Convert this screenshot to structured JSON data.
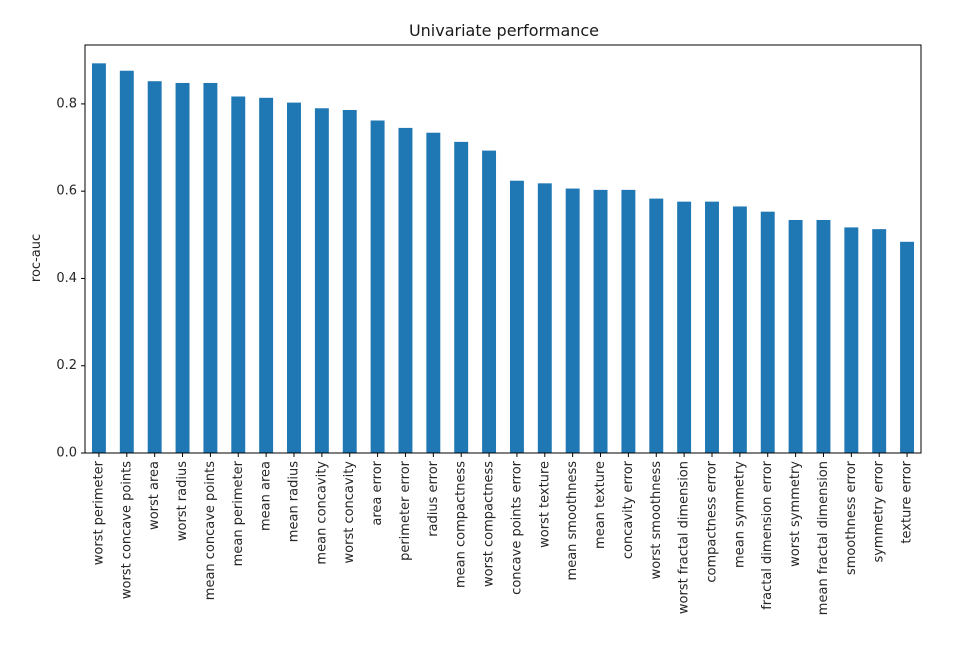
{
  "chart_data": {
    "type": "bar",
    "title": "Univariate performance",
    "xlabel": "",
    "ylabel": "roc-auc",
    "ylim": [
      0,
      0.935
    ],
    "yticks": [
      0.0,
      0.2,
      0.4,
      0.6,
      0.8
    ],
    "ytick_labels": [
      "0.0",
      "0.2",
      "0.4",
      "0.6",
      "0.8"
    ],
    "grid": false,
    "bar_color": "#1f77b4",
    "categories": [
      "worst perimeter",
      "worst concave points",
      "worst area",
      "worst radius",
      "mean concave points",
      "mean perimeter",
      "mean area",
      "mean radius",
      "mean concavity",
      "worst concavity",
      "area error",
      "perimeter error",
      "radius error",
      "mean compactness",
      "worst compactness",
      "concave points error",
      "worst texture",
      "mean smoothness",
      "mean texture",
      "concavity error",
      "worst smoothness",
      "worst fractal dimension",
      "compactness error",
      "mean symmetry",
      "fractal dimension error",
      "worst symmetry",
      "mean fractal dimension",
      "smoothness error",
      "symmetry error",
      "texture error"
    ],
    "values": [
      0.893,
      0.876,
      0.852,
      0.848,
      0.848,
      0.817,
      0.814,
      0.803,
      0.79,
      0.786,
      0.762,
      0.745,
      0.734,
      0.713,
      0.693,
      0.624,
      0.618,
      0.606,
      0.603,
      0.603,
      0.583,
      0.576,
      0.576,
      0.565,
      0.553,
      0.534,
      0.534,
      0.517,
      0.513,
      0.484
    ]
  }
}
